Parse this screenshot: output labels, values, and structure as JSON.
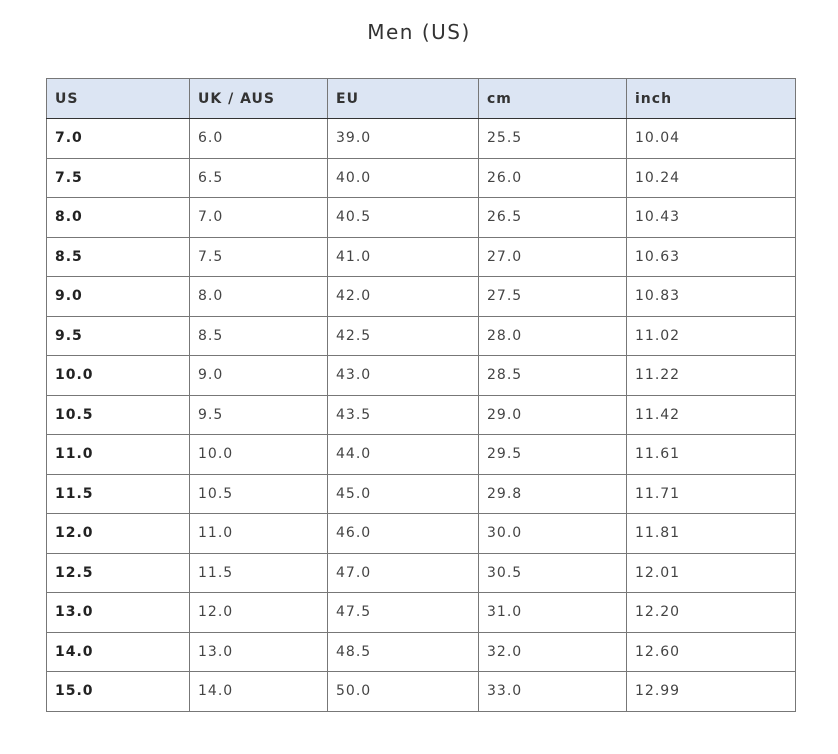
{
  "title": "Men (US)",
  "headers": [
    "US",
    "UK / AUS",
    "EU",
    "cm",
    "inch"
  ],
  "rows": [
    [
      "7.0",
      "6.0",
      "39.0",
      "25.5",
      "10.04"
    ],
    [
      "7.5",
      "6.5",
      "40.0",
      "26.0",
      "10.24"
    ],
    [
      "8.0",
      "7.0",
      "40.5",
      "26.5",
      "10.43"
    ],
    [
      "8.5",
      "7.5",
      "41.0",
      "27.0",
      "10.63"
    ],
    [
      "9.0",
      "8.0",
      "42.0",
      "27.5",
      "10.83"
    ],
    [
      "9.5",
      "8.5",
      "42.5",
      "28.0",
      "11.02"
    ],
    [
      "10.0",
      "9.0",
      "43.0",
      "28.5",
      "11.22"
    ],
    [
      "10.5",
      "9.5",
      "43.5",
      "29.0",
      "11.42"
    ],
    [
      "11.0",
      "10.0",
      "44.0",
      "29.5",
      "11.61"
    ],
    [
      "11.5",
      "10.5",
      "45.0",
      "29.8",
      "11.71"
    ],
    [
      "12.0",
      "11.0",
      "46.0",
      "30.0",
      "11.81"
    ],
    [
      "12.5",
      "11.5",
      "47.0",
      "30.5",
      "12.01"
    ],
    [
      "13.0",
      "12.0",
      "47.5",
      "31.0",
      "12.20"
    ],
    [
      "14.0",
      "13.0",
      "48.5",
      "32.0",
      "12.60"
    ],
    [
      "15.0",
      "14.0",
      "50.0",
      "33.0",
      "12.99"
    ]
  ],
  "colors": {
    "header_bg": "#dce5f3",
    "border": "#777777"
  }
}
